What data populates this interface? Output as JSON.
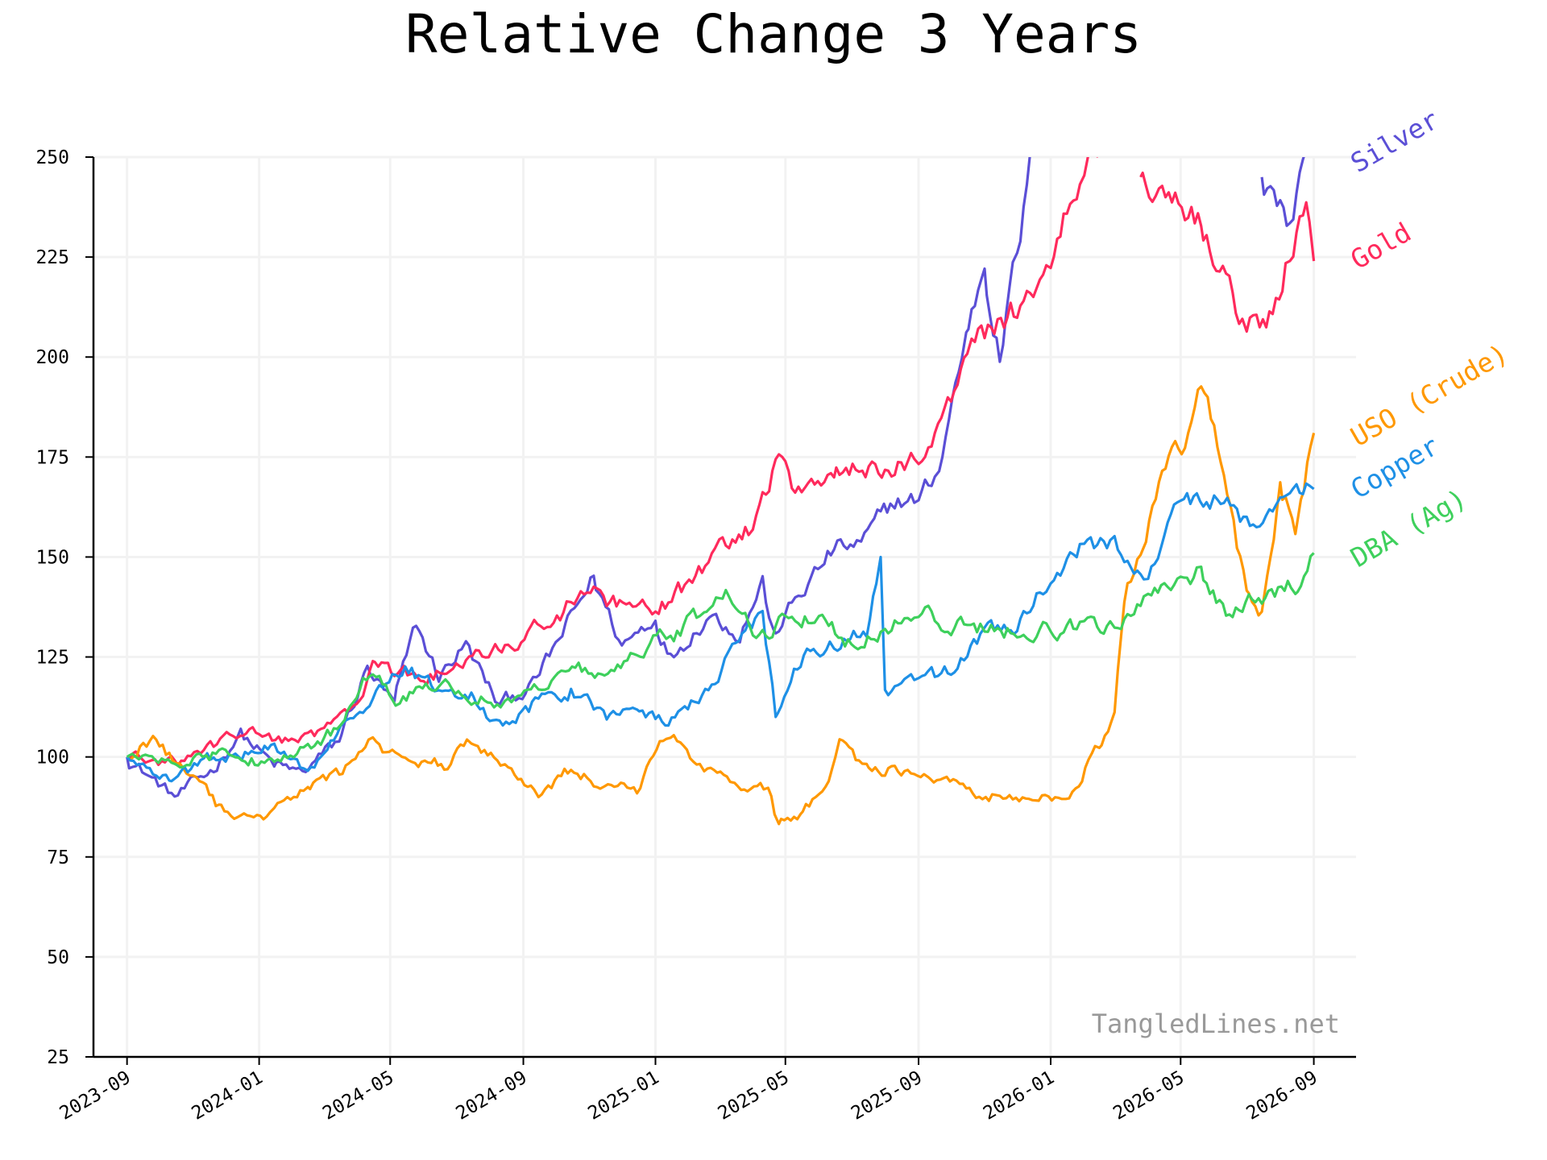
{
  "chart_data": {
    "type": "line",
    "title": "Relative Change 3 Years",
    "xlabel": "",
    "ylabel": "",
    "ylim": [
      25,
      250
    ],
    "yticks": [
      25,
      50,
      75,
      100,
      125,
      150,
      175,
      200,
      225,
      250
    ],
    "xticks": [
      "2023-09",
      "2024-01",
      "2024-05",
      "2024-09",
      "2025-01",
      "2025-05",
      "2025-09",
      "2026-01",
      "2026-05",
      "2026-09"
    ],
    "xlim": [
      "2023-08-01",
      "2026-10-10"
    ],
    "grid": true,
    "legend": "end-of-line labels",
    "watermark": "TangledLines.net",
    "series": [
      {
        "name": "Silver",
        "color": "#5b4fd6",
        "points": [
          [
            "2023-09-01",
            100
          ],
          [
            "2023-10-15",
            90
          ],
          [
            "2023-11-20",
            97
          ],
          [
            "2023-12-15",
            106
          ],
          [
            "2024-01-15",
            98
          ],
          [
            "2024-02-10",
            96
          ],
          [
            "2024-03-15",
            104
          ],
          [
            "2024-04-10",
            122
          ],
          [
            "2024-05-05",
            113
          ],
          [
            "2024-05-25",
            133
          ],
          [
            "2024-06-15",
            120
          ],
          [
            "2024-07-10",
            128
          ],
          [
            "2024-08-10",
            113
          ],
          [
            "2024-09-10",
            118
          ],
          [
            "2024-10-10",
            132
          ],
          [
            "2024-11-05",
            145
          ],
          [
            "2024-12-01",
            128
          ],
          [
            "2025-01-01",
            135
          ],
          [
            "2025-01-15",
            125
          ],
          [
            "2025-02-20",
            136
          ],
          [
            "2025-03-20",
            131
          ],
          [
            "2025-04-10",
            144
          ],
          [
            "2025-04-20",
            130
          ],
          [
            "2025-05-10",
            139
          ],
          [
            "2025-06-15",
            152
          ],
          [
            "2025-07-10",
            153
          ],
          [
            "2025-08-10",
            164
          ],
          [
            "2025-09-01",
            164
          ],
          [
            "2025-09-20",
            172
          ],
          [
            "2025-10-15",
            205
          ],
          [
            "2025-11-01",
            224
          ],
          [
            "2025-11-15",
            200
          ],
          [
            "2025-12-01",
            225
          ],
          [
            "2025-12-20",
            258
          ]
        ]
      },
      {
        "name": "Silver",
        "color": "#5b4fd6",
        "points": [
          [
            "2026-07-15",
            245
          ],
          [
            "2026-08-10",
            233
          ],
          [
            "2026-08-25",
            252
          ]
        ]
      },
      {
        "name": "Gold",
        "color": "#ff2a5c",
        "points": [
          [
            "2023-09-01",
            100
          ],
          [
            "2023-10-15",
            98
          ],
          [
            "2023-12-15",
            106
          ],
          [
            "2024-02-15",
            104
          ],
          [
            "2024-03-20",
            110
          ],
          [
            "2024-04-15",
            122
          ],
          [
            "2024-05-20",
            120
          ],
          [
            "2024-06-20",
            121
          ],
          [
            "2024-08-15",
            127
          ],
          [
            "2024-10-15",
            138
          ],
          [
            "2024-11-05",
            142
          ],
          [
            "2024-11-20",
            138
          ],
          [
            "2025-01-01",
            136
          ],
          [
            "2025-02-01",
            143
          ],
          [
            "2025-03-01",
            152
          ],
          [
            "2025-04-01",
            157
          ],
          [
            "2025-04-25",
            175
          ],
          [
            "2025-05-10",
            167
          ],
          [
            "2025-06-15",
            172
          ],
          [
            "2025-08-01",
            171
          ],
          [
            "2025-09-01",
            175
          ],
          [
            "2025-09-25",
            186
          ],
          [
            "2025-10-20",
            203
          ],
          [
            "2025-11-10",
            208
          ],
          [
            "2025-12-01",
            212
          ],
          [
            "2026-01-01",
            225
          ],
          [
            "2026-02-01",
            247
          ],
          [
            "2026-02-25",
            260
          ]
        ]
      },
      {
        "name": "Gold",
        "color": "#ff2a5c",
        "points": [
          [
            "2026-03-25",
            245
          ],
          [
            "2026-04-20",
            242
          ],
          [
            "2026-05-20",
            234
          ],
          [
            "2026-06-15",
            218
          ],
          [
            "2026-07-01",
            207
          ],
          [
            "2026-07-25",
            210
          ],
          [
            "2026-08-10",
            225
          ],
          [
            "2026-08-25",
            238
          ],
          [
            "2026-09-01",
            224
          ]
        ]
      },
      {
        "name": "USO (Crude)",
        "color": "#ff9800",
        "points": [
          [
            "2023-09-01",
            100
          ],
          [
            "2023-09-25",
            105
          ],
          [
            "2023-10-20",
            98
          ],
          [
            "2023-11-25",
            87
          ],
          [
            "2023-12-15",
            84
          ],
          [
            "2024-01-15",
            86
          ],
          [
            "2024-02-15",
            92
          ],
          [
            "2024-03-15",
            96
          ],
          [
            "2024-04-15",
            104
          ],
          [
            "2024-05-15",
            98
          ],
          [
            "2024-06-20",
            98
          ],
          [
            "2024-07-15",
            104
          ],
          [
            "2024-08-15",
            98
          ],
          [
            "2024-09-15",
            90
          ],
          [
            "2024-10-15",
            97
          ],
          [
            "2024-11-15",
            93
          ],
          [
            "2024-12-15",
            92
          ],
          [
            "2025-01-15",
            106
          ],
          [
            "2025-02-15",
            98
          ],
          [
            "2025-03-15",
            93
          ],
          [
            "2025-04-15",
            92
          ],
          [
            "2025-04-25",
            83
          ],
          [
            "2025-05-15",
            86
          ],
          [
            "2025-06-10",
            93
          ],
          [
            "2025-06-20",
            104
          ],
          [
            "2025-07-15",
            97
          ],
          [
            "2025-08-10",
            97
          ],
          [
            "2025-09-10",
            94
          ],
          [
            "2025-10-15",
            92
          ],
          [
            "2025-11-15",
            90
          ],
          [
            "2025-12-15",
            90
          ],
          [
            "2026-01-15",
            89
          ],
          [
            "2026-02-15",
            103
          ],
          [
            "2026-03-01",
            110
          ],
          [
            "2026-03-10",
            140
          ],
          [
            "2026-03-25",
            152
          ],
          [
            "2026-04-20",
            175
          ],
          [
            "2026-05-05",
            176
          ],
          [
            "2026-05-20",
            192
          ],
          [
            "2026-06-10",
            172
          ],
          [
            "2026-07-01",
            140
          ],
          [
            "2026-07-15",
            135
          ],
          [
            "2026-08-01",
            168
          ],
          [
            "2026-08-15",
            157
          ],
          [
            "2026-09-01",
            181
          ]
        ]
      },
      {
        "name": "Copper",
        "color": "#1e90e6",
        "points": [
          [
            "2023-09-01",
            100
          ],
          [
            "2023-10-10",
            94
          ],
          [
            "2023-11-20",
            100
          ],
          [
            "2024-01-15",
            102
          ],
          [
            "2024-02-15",
            97
          ],
          [
            "2024-03-20",
            107
          ],
          [
            "2024-05-15",
            122
          ],
          [
            "2024-06-15",
            118
          ],
          [
            "2024-07-15",
            116
          ],
          [
            "2024-08-10",
            107
          ],
          [
            "2024-09-15",
            114
          ],
          [
            "2024-10-15",
            117
          ],
          [
            "2024-11-20",
            110
          ],
          [
            "2024-12-15",
            111
          ],
          [
            "2025-01-10",
            109
          ],
          [
            "2025-02-10",
            115
          ],
          [
            "2025-03-10",
            125
          ],
          [
            "2025-04-10",
            136
          ],
          [
            "2025-04-22",
            110
          ],
          [
            "2025-05-15",
            125
          ],
          [
            "2025-06-15",
            128
          ],
          [
            "2025-07-15",
            132
          ],
          [
            "2025-07-28",
            150
          ],
          [
            "2025-08-01",
            117
          ],
          [
            "2025-09-01",
            118
          ],
          [
            "2025-10-01",
            122
          ],
          [
            "2025-11-01",
            131
          ],
          [
            "2025-12-01",
            132
          ],
          [
            "2026-01-01",
            145
          ],
          [
            "2026-02-01",
            154
          ],
          [
            "2026-03-01",
            152
          ],
          [
            "2026-04-01",
            145
          ],
          [
            "2026-05-01",
            163
          ],
          [
            "2026-06-01",
            165
          ],
          [
            "2026-07-01",
            158
          ],
          [
            "2026-08-01",
            165
          ],
          [
            "2026-09-01",
            167
          ]
        ]
      },
      {
        "name": "DBA (Ag)",
        "color": "#3ed05c",
        "points": [
          [
            "2023-09-01",
            100
          ],
          [
            "2023-10-15",
            98
          ],
          [
            "2023-12-01",
            101
          ],
          [
            "2024-01-15",
            98
          ],
          [
            "2024-02-15",
            103
          ],
          [
            "2024-03-20",
            108
          ],
          [
            "2024-04-15",
            123
          ],
          [
            "2024-05-10",
            114
          ],
          [
            "2024-06-15",
            120
          ],
          [
            "2024-07-15",
            115
          ],
          [
            "2024-08-15",
            114
          ],
          [
            "2024-09-15",
            118
          ],
          [
            "2024-10-10",
            124
          ],
          [
            "2024-11-15",
            119
          ],
          [
            "2024-12-15",
            127
          ],
          [
            "2025-01-15",
            130
          ],
          [
            "2025-02-15",
            136
          ],
          [
            "2025-03-10",
            140
          ],
          [
            "2025-04-01",
            131
          ],
          [
            "2025-05-01",
            134
          ],
          [
            "2025-06-01",
            135
          ],
          [
            "2025-07-01",
            128
          ],
          [
            "2025-08-01",
            131
          ],
          [
            "2025-09-01",
            137
          ],
          [
            "2025-10-01",
            133
          ],
          [
            "2025-11-01",
            132
          ],
          [
            "2025-12-01",
            131
          ],
          [
            "2026-01-01",
            132
          ],
          [
            "2026-02-01",
            132
          ],
          [
            "2026-03-01",
            133
          ],
          [
            "2026-04-01",
            141
          ],
          [
            "2026-05-01",
            143
          ],
          [
            "2026-05-20",
            146
          ],
          [
            "2026-06-15",
            136
          ],
          [
            "2026-07-15",
            140
          ],
          [
            "2026-08-15",
            143
          ],
          [
            "2026-09-01",
            151
          ]
        ]
      }
    ],
    "end_labels": [
      {
        "text": "Silver",
        "color": "#5b4fd6"
      },
      {
        "text": "Gold",
        "color": "#ff2a5c"
      },
      {
        "text": "USO (Crude)",
        "color": "#ff9800"
      },
      {
        "text": "Copper",
        "color": "#1e90e6"
      },
      {
        "text": "DBA (Ag)",
        "color": "#3ed05c"
      }
    ]
  }
}
